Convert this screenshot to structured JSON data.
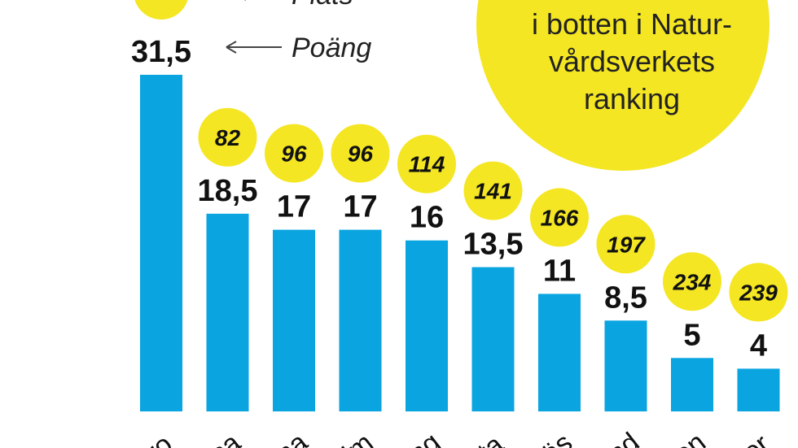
{
  "chart_data": {
    "type": "bar",
    "categories": [
      "ro",
      "sa",
      "na",
      "lm",
      "ng",
      "ta",
      "äs",
      "nd",
      "en",
      "er"
    ],
    "values": [
      31.5,
      18.5,
      17,
      17,
      16,
      13.5,
      11,
      8.5,
      5,
      4
    ],
    "value_labels": [
      "31,5",
      "18,5",
      "17",
      "17",
      "16",
      "13,5",
      "11",
      "8,5",
      "5",
      "4"
    ],
    "ranks": [
      "",
      "82",
      "96",
      "96",
      "114",
      "141",
      "166",
      "197",
      "234",
      "239"
    ],
    "ylim": [
      0,
      31.5
    ],
    "grid": false,
    "colors": {
      "bar": "#0aa4e0",
      "rank_circle": "#f4e622"
    }
  },
  "legend": {
    "rank_label": "Plats",
    "points_label": "Poäng"
  },
  "callout": {
    "lines": [
      "i botten i Natur-",
      "vårdsverkets",
      "ranking"
    ]
  }
}
